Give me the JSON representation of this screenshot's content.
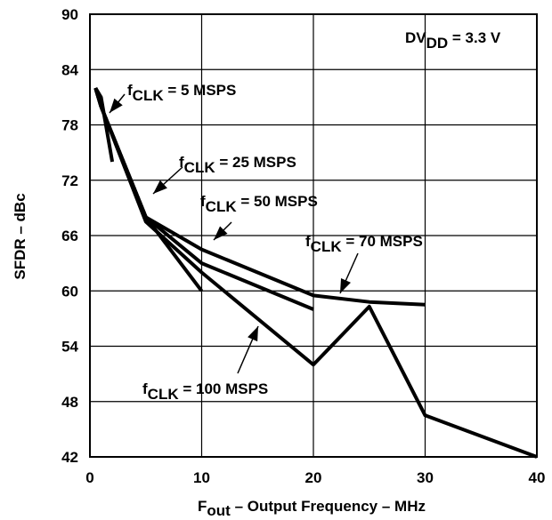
{
  "chart_data": {
    "type": "line",
    "xlabel": {
      "main": "F",
      "sub": "out",
      "rest": " – Output Frequency – MHz"
    },
    "ylabel": "SFDR – dBc",
    "xlim": [
      0,
      40
    ],
    "ylim": [
      42,
      90
    ],
    "xticks": [
      0,
      10,
      20,
      30,
      40
    ],
    "yticks": [
      42,
      48,
      54,
      60,
      66,
      72,
      78,
      84,
      90
    ],
    "grid": true,
    "condition": {
      "main": "DV",
      "sub": "DD",
      "rest": " = 3.3 V"
    },
    "series": [
      {
        "name": "fCLK = 5 MSPS",
        "label": {
          "main": "f",
          "sub": "CLK",
          "rest": " = 5 MSPS"
        },
        "x": [
          0.5,
          1,
          2
        ],
        "y": [
          82,
          81,
          74
        ]
      },
      {
        "name": "fCLK = 25 MSPS",
        "label": {
          "main": "f",
          "sub": "CLK",
          "rest": " = 25 MSPS"
        },
        "x": [
          0.5,
          1,
          5,
          10
        ],
        "y": [
          82,
          80,
          68,
          60
        ]
      },
      {
        "name": "fCLK = 50 MSPS",
        "label": {
          "main": "f",
          "sub": "CLK",
          "rest": " = 50 MSPS"
        },
        "x": [
          0.5,
          1,
          5,
          10,
          20
        ],
        "y": [
          82,
          80,
          68,
          63,
          58
        ]
      },
      {
        "name": "fCLK = 70 MSPS",
        "label": {
          "main": "f",
          "sub": "CLK",
          "rest": " = 70 MSPS"
        },
        "x": [
          0.5,
          1,
          5,
          10,
          20,
          25,
          30
        ],
        "y": [
          82,
          80,
          68,
          64.5,
          59.5,
          58.8,
          58.5
        ]
      },
      {
        "name": "fCLK = 100 MSPS",
        "label": {
          "main": "f",
          "sub": "CLK",
          "rest": " = 100 MSPS"
        },
        "x": [
          0.5,
          1,
          5,
          10,
          20,
          25,
          30,
          40
        ],
        "y": [
          82,
          80,
          67.5,
          62,
          52,
          58.3,
          46.5,
          42
        ]
      }
    ]
  }
}
